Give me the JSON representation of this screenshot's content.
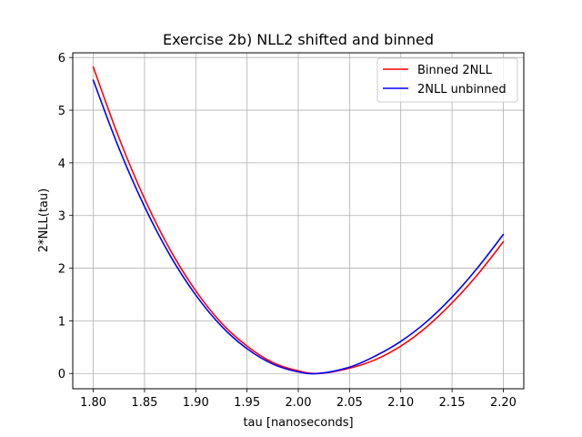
{
  "chart_data": {
    "type": "line",
    "title": "Exercise 2b) NLL2 shifted and binned",
    "xlabel": "tau [nanoseconds]",
    "ylabel": "2*NLL(tau)",
    "xlim": [
      1.78,
      2.22
    ],
    "ylim": [
      -0.29,
      6.09
    ],
    "x_ticks": [
      "1.80",
      "1.85",
      "1.90",
      "1.95",
      "2.00",
      "2.05",
      "2.10",
      "2.15",
      "2.20"
    ],
    "y_ticks": [
      "0",
      "1",
      "2",
      "3",
      "4",
      "5",
      "6"
    ],
    "grid": true,
    "legend_position": "top-right",
    "x": [
      1.8,
      1.825,
      1.85,
      1.875,
      1.9,
      1.925,
      1.95,
      1.975,
      2.0,
      2.02,
      2.05,
      2.075,
      2.1,
      2.125,
      2.15,
      2.175,
      2.2
    ],
    "series": [
      {
        "name": "Binned 2NLL",
        "color": "#ff0000",
        "values": [
          5.82,
          4.48,
          3.32,
          2.35,
          1.57,
          0.96,
          0.52,
          0.21,
          0.05,
          0.0,
          0.1,
          0.26,
          0.52,
          0.88,
          1.34,
          1.88,
          2.5
        ]
      },
      {
        "name": "2NLL unbinned",
        "color": "#0000ff",
        "values": [
          5.57,
          4.28,
          3.17,
          2.24,
          1.49,
          0.9,
          0.47,
          0.18,
          0.03,
          0.0,
          0.12,
          0.33,
          0.61,
          0.98,
          1.45,
          2.01,
          2.64
        ]
      }
    ]
  }
}
